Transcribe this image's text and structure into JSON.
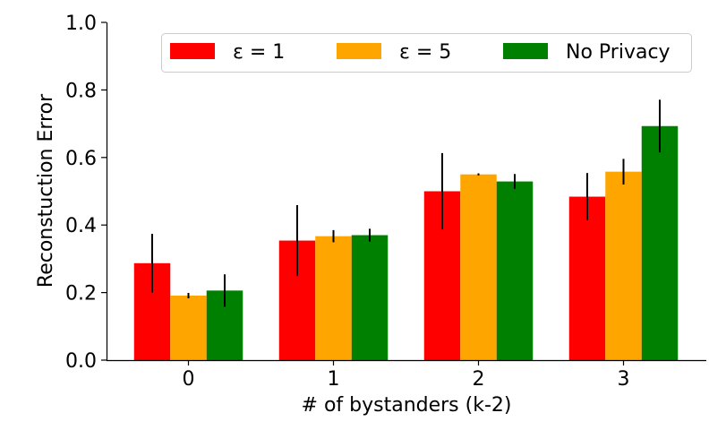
{
  "chart_data": {
    "type": "bar",
    "xlabel": "# of bystanders (k-2)",
    "ylabel": "Reconstuction Error",
    "categories": [
      "0",
      "1",
      "2",
      "3"
    ],
    "ylim": [
      0,
      1.0
    ],
    "yticks": [
      "0.0",
      "0.2",
      "0.4",
      "0.6",
      "0.8",
      "1.0"
    ],
    "grid": false,
    "legend_position": "top-right",
    "series": [
      {
        "name": "ε = 1",
        "color": "#ff0000",
        "values": [
          0.287,
          0.354,
          0.5,
          0.484
        ],
        "error": [
          0.087,
          0.105,
          0.113,
          0.07
        ]
      },
      {
        "name": "ε = 5",
        "color": "#ffa500",
        "values": [
          0.191,
          0.367,
          0.55,
          0.558
        ],
        "error": [
          0.008,
          0.018,
          0.003,
          0.038
        ]
      },
      {
        "name": "No Privacy",
        "color": "#008000",
        "values": [
          0.206,
          0.37,
          0.529,
          0.693
        ],
        "error": [
          0.048,
          0.019,
          0.022,
          0.078
        ]
      }
    ]
  }
}
